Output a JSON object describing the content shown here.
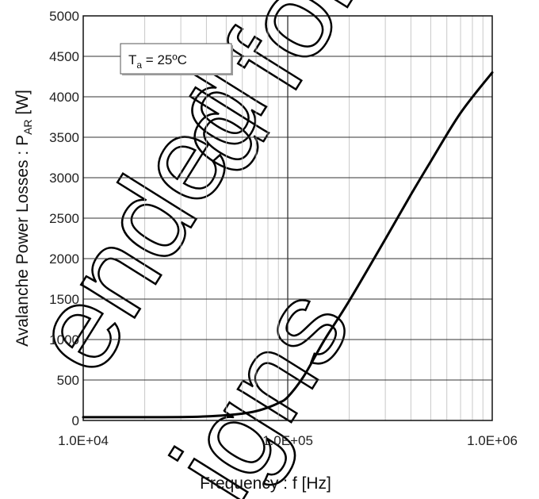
{
  "chart_data": {
    "type": "line",
    "xscale": "log",
    "xlim": [
      10000,
      1000000
    ],
    "ylim": [
      0,
      5000
    ],
    "x_ticks": [
      "1.0E+04",
      "1.0E+05",
      "1.0E+06"
    ],
    "y_ticks": [
      "0",
      "500",
      "1000",
      "1500",
      "2000",
      "2500",
      "3000",
      "3500",
      "4000",
      "4500",
      "5000"
    ],
    "xlabel": "Frequency : f [Hz]",
    "ylabel_main": "Avalanche Power Losses : P",
    "ylabel_sub": "AR",
    "ylabel_unit": " [W]",
    "grid": true,
    "legend": {
      "main": "T",
      "sub": "a",
      "rest": " = 25ºC",
      "placement": "top-left"
    },
    "series": [
      {
        "x": [
          10000,
          15000,
          20000,
          30000,
          40000,
          50000,
          60000,
          70000,
          80000,
          90000,
          100000,
          120000,
          150000,
          200000,
          300000,
          400000,
          500000,
          700000,
          1000000
        ],
        "y": [
          40,
          40,
          40,
          42,
          50,
          65,
          85,
          115,
          160,
          215,
          290,
          550,
          980,
          1480,
          2240,
          2790,
          3200,
          3800,
          4300
        ]
      }
    ]
  },
  "watermark": [
    "ended",
    "igns",
    "d for"
  ]
}
